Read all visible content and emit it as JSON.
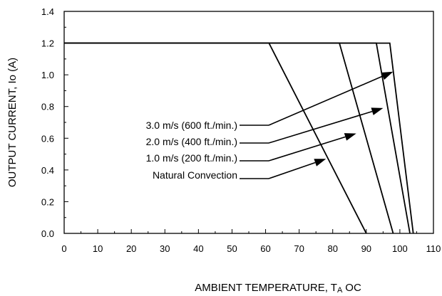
{
  "chart_data": {
    "type": "line",
    "xlabel": "AMBIENT TEMPERATURE, T",
    "xlabel_sub": "A",
    "xlabel_unit": "OC",
    "ylabel": "OUTPUT CURRENT, Io  (A)",
    "xlim": [
      0,
      110
    ],
    "ylim": [
      0,
      1.4
    ],
    "x_ticks": [
      "0",
      "10",
      "20",
      "30",
      "40",
      "50",
      "60",
      "70",
      "80",
      "90",
      "100",
      "110"
    ],
    "y_ticks": [
      "0.0",
      "0.2",
      "0.4",
      "0.6",
      "0.8",
      "1.0",
      "1.2",
      "1.4"
    ],
    "grid": false,
    "series": [
      {
        "name": "Natural Convection",
        "points": [
          [
            0,
            1.2
          ],
          [
            61,
            1.2
          ],
          [
            90,
            0.0
          ]
        ]
      },
      {
        "name": "1.0 m/s (200 ft./min.)",
        "points": [
          [
            0,
            1.2
          ],
          [
            82,
            1.2
          ],
          [
            98,
            0.0
          ]
        ]
      },
      {
        "name": "2.0 m/s (400 ft./min.)",
        "points": [
          [
            0,
            1.2
          ],
          [
            93,
            1.2
          ],
          [
            103,
            0.0
          ]
        ]
      },
      {
        "name": "3.0 m/s (600 ft./min.)",
        "points": [
          [
            0,
            1.2
          ],
          [
            97,
            1.2
          ],
          [
            104,
            0.0
          ]
        ]
      }
    ],
    "annotations": [
      {
        "text": "3.0 m/s (600 ft./min.)",
        "target": [
          98,
          1.02
        ]
      },
      {
        "text": "2.0 m/s (400 ft./min.)",
        "target": [
          95,
          0.79
        ]
      },
      {
        "text": "1.0 m/s (200 ft./min.)",
        "target": [
          87,
          0.63
        ]
      },
      {
        "text": "Natural Convection",
        "target": [
          78,
          0.47
        ]
      }
    ]
  }
}
